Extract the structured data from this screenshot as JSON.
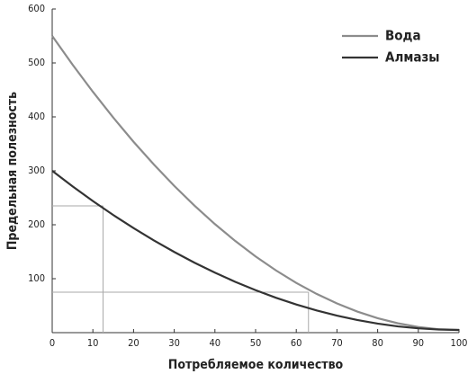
{
  "chart_data": {
    "type": "line",
    "xlabel": "Потребляемое количество",
    "ylabel": "Предельная полезность",
    "x": [
      0,
      5,
      10,
      15,
      20,
      25,
      30,
      35,
      40,
      45,
      50,
      55,
      60,
      65,
      70,
      75,
      80,
      85,
      90,
      95,
      100
    ],
    "series": [
      {
        "name": "Вода",
        "color": "#8c8c8c",
        "values": [
          550,
          496.9,
          446.5,
          398.8,
          353.8,
          311.6,
          272.1,
          235.3,
          201.2,
          169.9,
          141.3,
          115.4,
          92.2,
          71.8,
          54.1,
          39.1,
          26.8,
          17.3,
          10.5,
          6.4,
          5
        ]
      },
      {
        "name": "Алмазы",
        "color": "#333333",
        "values": [
          300,
          271.2,
          244,
          218.1,
          193.8,
          170.9,
          149.6,
          129.6,
          111.2,
          94.2,
          78.8,
          64.7,
          52.2,
          41.1,
          31.6,
          23.4,
          16.8,
          11.6,
          8,
          5.7,
          5
        ]
      }
    ],
    "guides": [
      {
        "x": 12.5,
        "y": 235
      },
      {
        "x": 63,
        "y": 75
      }
    ],
    "guide_color": "#aaaaaa",
    "xlim": [
      0,
      100
    ],
    "xticks": [
      0,
      10,
      20,
      30,
      40,
      50,
      60,
      70,
      80,
      90,
      100
    ],
    "ylim": [
      0,
      600
    ],
    "yticks": [
      100,
      200,
      300,
      400,
      500,
      600
    ],
    "grid": false,
    "legend": "upper right"
  }
}
